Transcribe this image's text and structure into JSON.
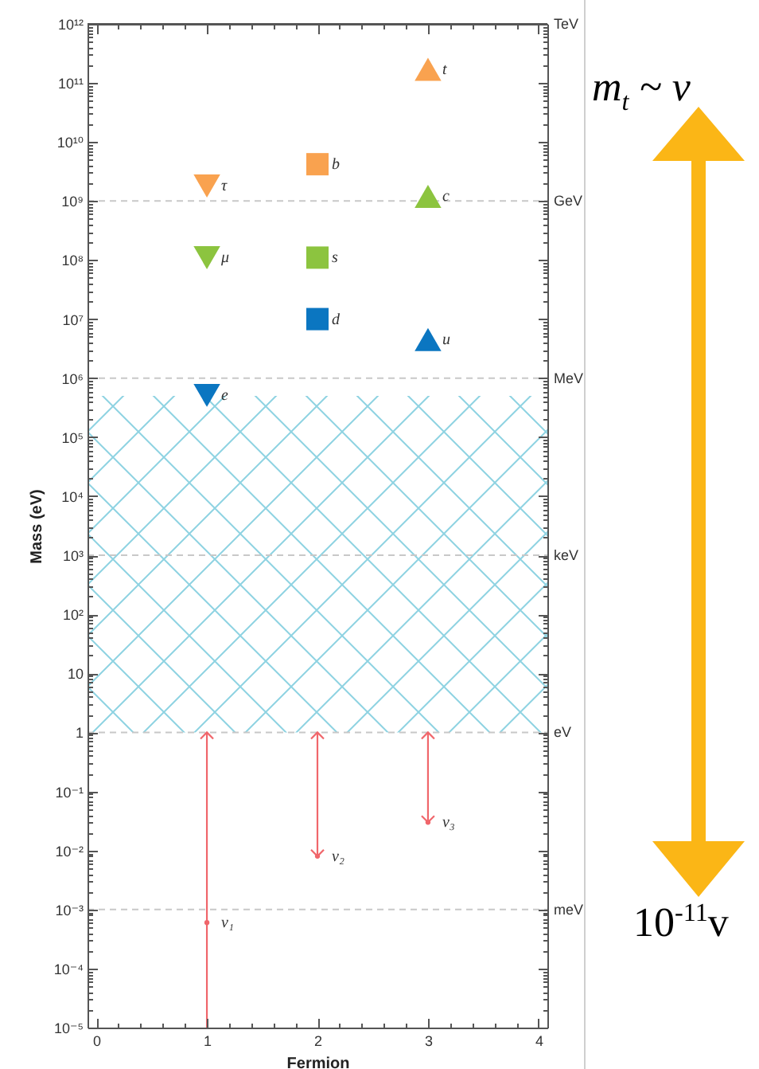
{
  "chart_data": {
    "type": "scatter",
    "xlabel": "Fermion",
    "ylabel": "Mass (eV)",
    "log": "y",
    "xlim": [
      -0.08,
      4.08
    ],
    "xticks": [
      0,
      {
        "value": 0.2,
        "label": null
      },
      {
        "value": 0.4,
        "label": null
      },
      {
        "value": 0.6,
        "label": null
      },
      {
        "value": 0.8,
        "label": null
      },
      1,
      {
        "value": 1.2,
        "label": null
      },
      {
        "value": 1.4,
        "label": null
      },
      {
        "value": 1.6,
        "label": null
      },
      {
        "value": 1.8,
        "label": null
      },
      2,
      {
        "value": 2.2,
        "label": null
      },
      {
        "value": 2.4,
        "label": null
      },
      {
        "value": 2.6,
        "label": null
      },
      {
        "value": 2.8,
        "label": null
      },
      3,
      {
        "value": 3.2,
        "label": null
      },
      {
        "value": 3.4,
        "label": null
      },
      {
        "value": 3.6,
        "label": null
      },
      {
        "value": 3.8,
        "label": null
      },
      4
    ],
    "ylim": [
      1e-05,
      1000000000000.0
    ],
    "yticks": [
      {
        "value": 1e-05,
        "label": "10⁻⁵"
      },
      {
        "value": 0.0001,
        "label": "10⁻⁴"
      },
      {
        "value": 0.001,
        "label": "10⁻³"
      },
      {
        "value": 0.01,
        "label": "10⁻²"
      },
      {
        "value": 0.1,
        "label": "10⁻¹"
      },
      1,
      10,
      {
        "value": 100,
        "label": "10²"
      },
      {
        "value": 1000,
        "label": "10³"
      },
      {
        "value": 10000.0,
        "label": "10⁴"
      },
      {
        "value": 100000.0,
        "label": "10⁵"
      },
      {
        "value": 1000000.0,
        "label": "10⁶"
      },
      {
        "value": 10000000.0,
        "label": "10⁷"
      },
      {
        "value": 100000000.0,
        "label": "10⁸"
      },
      {
        "value": 1000000000.0,
        "label": "10⁹"
      },
      {
        "value": 10000000000.0,
        "label": "10¹⁰"
      },
      {
        "value": 100000000000.0,
        "label": "10¹¹"
      },
      {
        "value": 1000000000000.0,
        "label": "10¹²"
      },
      {
        "value": 2e-05,
        "label": null
      },
      {
        "value": 3e-05,
        "label": null
      },
      {
        "value": 4e-05,
        "label": null
      },
      {
        "value": 5e-05,
        "label": null
      },
      {
        "value": 6e-05,
        "label": null
      },
      {
        "value": 7e-05,
        "label": null
      },
      {
        "value": 8e-05,
        "label": null
      },
      {
        "value": 9e-05,
        "label": null
      },
      {
        "value": 0.0002,
        "label": null
      },
      {
        "value": 0.0003,
        "label": null
      },
      {
        "value": 0.0004,
        "label": null
      },
      {
        "value": 0.0005,
        "label": null
      },
      {
        "value": 0.0006,
        "label": null
      },
      {
        "value": 0.0007,
        "label": null
      },
      {
        "value": 0.0008,
        "label": null
      },
      {
        "value": 0.0009,
        "label": null
      },
      {
        "value": 0.002,
        "label": null
      },
      {
        "value": 0.003,
        "label": null
      },
      {
        "value": 0.004,
        "label": null
      },
      {
        "value": 0.005,
        "label": null
      },
      {
        "value": 0.006,
        "label": null
      },
      {
        "value": 0.007,
        "label": null
      },
      {
        "value": 0.008,
        "label": null
      },
      {
        "value": 0.009,
        "label": null
      },
      {
        "value": 0.02,
        "label": null
      },
      {
        "value": 0.03,
        "label": null
      },
      {
        "value": 0.04,
        "label": null
      },
      {
        "value": 0.05,
        "label": null
      },
      {
        "value": 0.06,
        "label": null
      },
      {
        "value": 0.07,
        "label": null
      },
      {
        "value": 0.08,
        "label": null
      },
      {
        "value": 0.09,
        "label": null
      },
      {
        "value": 0.2,
        "label": null
      },
      {
        "value": 0.3,
        "label": null
      },
      {
        "value": 0.4,
        "label": null
      },
      {
        "value": 0.5,
        "label": null
      },
      {
        "value": 0.6,
        "label": null
      },
      {
        "value": 0.7,
        "label": null
      },
      {
        "value": 0.8,
        "label": null
      },
      {
        "value": 0.9,
        "label": null
      },
      {
        "value": 2.0,
        "label": null
      },
      {
        "value": 3.0,
        "label": null
      },
      {
        "value": 4.0,
        "label": null
      },
      {
        "value": 5.0,
        "label": null
      },
      {
        "value": 6.0,
        "label": null
      },
      {
        "value": 7.0,
        "label": null
      },
      {
        "value": 8.0,
        "label": null
      },
      {
        "value": 9.0,
        "label": null
      },
      {
        "value": 20.0,
        "label": null
      },
      {
        "value": 30.0,
        "label": null
      },
      {
        "value": 40.0,
        "label": null
      },
      {
        "value": 50.0,
        "label": null
      },
      {
        "value": 60.0,
        "label": null
      },
      {
        "value": 70.0,
        "label": null
      },
      {
        "value": 80.0,
        "label": null
      },
      {
        "value": 90.0,
        "label": null
      },
      {
        "value": 200.0,
        "label": null
      },
      {
        "value": 300.0,
        "label": null
      },
      {
        "value": 400.0,
        "label": null
      },
      {
        "value": 500.0,
        "label": null
      },
      {
        "value": 600.0,
        "label": null
      },
      {
        "value": 700.0,
        "label": null
      },
      {
        "value": 800.0,
        "label": null
      },
      {
        "value": 900.0,
        "label": null
      },
      {
        "value": 2000.0,
        "label": null
      },
      {
        "value": 3000.0,
        "label": null
      },
      {
        "value": 4000.0,
        "label": null
      },
      {
        "value": 5000.0,
        "label": null
      },
      {
        "value": 6000.0,
        "label": null
      },
      {
        "value": 7000.0,
        "label": null
      },
      {
        "value": 8000.0,
        "label": null
      },
      {
        "value": 9000.0,
        "label": null
      },
      {
        "value": 20000.0,
        "label": null
      },
      {
        "value": 30000.0,
        "label": null
      },
      {
        "value": 40000.0,
        "label": null
      },
      {
        "value": 50000.0,
        "label": null
      },
      {
        "value": 60000.0,
        "label": null
      },
      {
        "value": 70000.0,
        "label": null
      },
      {
        "value": 80000.0,
        "label": null
      },
      {
        "value": 90000.0,
        "label": null
      },
      {
        "value": 200000.0,
        "label": null
      },
      {
        "value": 300000.0,
        "label": null
      },
      {
        "value": 400000.0,
        "label": null
      },
      {
        "value": 500000.0,
        "label": null
      },
      {
        "value": 600000.0,
        "label": null
      },
      {
        "value": 700000.0,
        "label": null
      },
      {
        "value": 800000.0,
        "label": null
      },
      {
        "value": 900000.0,
        "label": null
      },
      {
        "value": 2000000.0,
        "label": null
      },
      {
        "value": 3000000.0,
        "label": null
      },
      {
        "value": 4000000.0,
        "label": null
      },
      {
        "value": 5000000.0,
        "label": null
      },
      {
        "value": 6000000.0,
        "label": null
      },
      {
        "value": 7000000.0,
        "label": null
      },
      {
        "value": 8000000.0,
        "label": null
      },
      {
        "value": 9000000.0,
        "label": null
      },
      {
        "value": 20000000.0,
        "label": null
      },
      {
        "value": 30000000.0,
        "label": null
      },
      {
        "value": 40000000.0,
        "label": null
      },
      {
        "value": 50000000.0,
        "label": null
      },
      {
        "value": 60000000.0,
        "label": null
      },
      {
        "value": 70000000.0,
        "label": null
      },
      {
        "value": 80000000.0,
        "label": null
      },
      {
        "value": 90000000.0,
        "label": null
      },
      {
        "value": 200000000.0,
        "label": null
      },
      {
        "value": 300000000.0,
        "label": null
      },
      {
        "value": 400000000.0,
        "label": null
      },
      {
        "value": 500000000.0,
        "label": null
      },
      {
        "value": 600000000.0,
        "label": null
      },
      {
        "value": 700000000.0,
        "label": null
      },
      {
        "value": 800000000.0,
        "label": null
      },
      {
        "value": 900000000.0,
        "label": null
      },
      {
        "value": 2000000000.0,
        "label": null
      },
      {
        "value": 3000000000.0,
        "label": null
      },
      {
        "value": 4000000000.0,
        "label": null
      },
      {
        "value": 5000000000.0,
        "label": null
      },
      {
        "value": 6000000000.0,
        "label": null
      },
      {
        "value": 7000000000.0,
        "label": null
      },
      {
        "value": 8000000000.0,
        "label": null
      },
      {
        "value": 9000000000.0,
        "label": null
      },
      {
        "value": 20000000000.0,
        "label": null
      },
      {
        "value": 30000000000.0,
        "label": null
      },
      {
        "value": 40000000000.0,
        "label": null
      },
      {
        "value": 50000000000.0,
        "label": null
      },
      {
        "value": 60000000000.0,
        "label": null
      },
      {
        "value": 70000000000.0,
        "label": null
      },
      {
        "value": 80000000000.0,
        "label": null
      },
      {
        "value": 90000000000.0,
        "label": null
      },
      {
        "value": 200000000000.0,
        "label": null
      },
      {
        "value": 300000000000.0,
        "label": null
      },
      {
        "value": 400000000000.0,
        "label": null
      },
      {
        "value": 500000000000.0,
        "label": null
      },
      {
        "value": 600000000000.0,
        "label": null
      },
      {
        "value": 700000000000.0,
        "label": null
      },
      {
        "value": 800000000000.0,
        "label": null
      },
      {
        "value": 900000000000.0,
        "label": null
      }
    ],
    "series": [
      {
        "x": [
          1,
          1,
          1
        ],
        "values": [
          1800000000.0,
          110000000.0,
          510000.0
        ],
        "colors": [
          "#f9a24f",
          "#8cc43f",
          "#0b76c1"
        ],
        "marker": "triangle-down"
      },
      {
        "x": [
          2,
          2,
          2
        ],
        "values": [
          4200000000.0,
          110000000.0,
          10000000.0
        ],
        "colors": [
          "#f9a24f",
          "#8cc43f",
          "#0b76c1"
        ],
        "marker": "square"
      },
      {
        "x": [
          3,
          3,
          3
        ],
        "values": [
          170000000000.0,
          1200000000.0,
          4500000.0
        ],
        "colors": [
          "#f9a24f",
          "#8cc43f",
          "#0b76c1"
        ],
        "marker": "triangle"
      },
      {
        "x": [
          1,
          2,
          3
        ],
        "values": [
          0.0006,
          0.008,
          0.03
        ],
        "errors": [
          [
            1e-05,
            1
          ],
          [
            0.008,
            1
          ],
          [
            0.03,
            1
          ]
        ],
        "color": "#f0666b",
        "marker": "circle"
      }
    ],
    "bands": [
      {
        "axis": "y",
        "from": 1,
        "to": 500000.0,
        "color": "#8fd3e2"
      }
    ],
    "ref_lines": [
      {
        "axis": "y",
        "value": 0.001,
        "label": "meV",
        "color": "#c8c8c8",
        "line_style": "dashed"
      },
      {
        "axis": "y",
        "value": 1,
        "label": "eV",
        "color": "#c8c8c8",
        "line_style": "dashed"
      },
      {
        "axis": "y",
        "value": 1000,
        "label": "keV",
        "color": "#c8c8c8",
        "line_style": "dashed"
      },
      {
        "axis": "y",
        "value": 1000000.0,
        "label": "MeV",
        "color": "#c8c8c8",
        "line_style": "dashed"
      },
      {
        "axis": "y",
        "value": 1000000000.0,
        "label": "GeV",
        "color": "#c8c8c8",
        "line_style": "dashed"
      },
      {
        "axis": "y",
        "value": 1000000000000.0,
        "label": "TeV",
        "color": "#555555",
        "line_style": "solid"
      }
    ],
    "annotations": [
      {
        "text": "τ",
        "x": 1,
        "y": 1800000000.0
      },
      {
        "text": "μ",
        "x": 1,
        "y": 110000000.0
      },
      {
        "text": "e",
        "x": 1,
        "y": 510000.0
      },
      {
        "text": "b",
        "x": 2,
        "y": 4200000000.0
      },
      {
        "text": "s",
        "x": 2,
        "y": 110000000.0
      },
      {
        "text": "d",
        "x": 2,
        "y": 10000000.0
      },
      {
        "text": "t",
        "x": 3,
        "y": 170000000000.0
      },
      {
        "text": "c",
        "x": 3,
        "y": 1200000000.0
      },
      {
        "text": "u",
        "x": 3,
        "y": 4500000.0
      },
      {
        "text": "ν₁",
        "x": 1,
        "y": 0.0006
      },
      {
        "text": "ν₂",
        "x": 2,
        "y": 0.008
      },
      {
        "text": "ν₃",
        "x": 3,
        "y": 0.03
      },
      "m$_{t}$ ~ v",
      "10$^{-11}$v"
    ]
  }
}
